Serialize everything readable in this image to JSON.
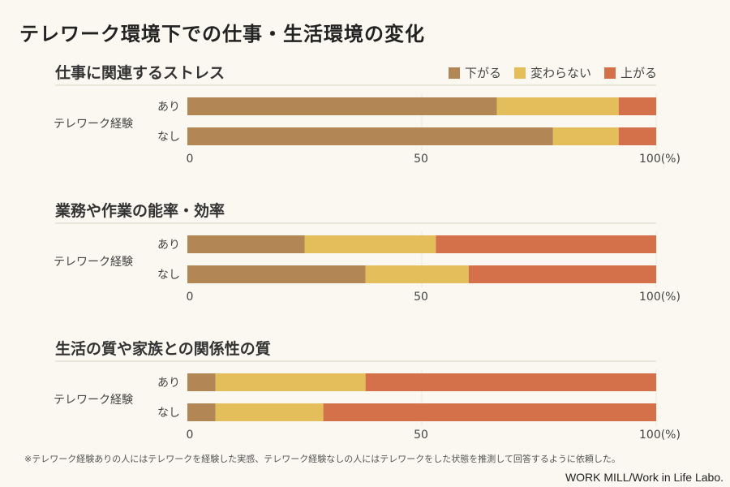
{
  "title": "テレワーク環境下での仕事・生活環境の変化",
  "legend": [
    {
      "label": "下がる",
      "color": "#b38656"
    },
    {
      "label": "変わらない",
      "color": "#e3be5b"
    },
    {
      "label": "上がる",
      "color": "#d4714a"
    }
  ],
  "chart_data": [
    {
      "type": "bar",
      "stacked": true,
      "orientation": "horizontal",
      "title": "仕事に関連するストレス",
      "group_label": "テレワーク経験",
      "categories": [
        "あり",
        "なし"
      ],
      "series": [
        {
          "name": "下がる",
          "values": [
            66,
            78
          ]
        },
        {
          "name": "変わらない",
          "values": [
            26,
            14
          ]
        },
        {
          "name": "上がる",
          "values": [
            8,
            8
          ]
        }
      ],
      "xlim": [
        0,
        100
      ],
      "xticks": [
        "0",
        "50",
        "100(%)"
      ]
    },
    {
      "type": "bar",
      "stacked": true,
      "orientation": "horizontal",
      "title": "業務や作業の能率・効率",
      "group_label": "テレワーク経験",
      "categories": [
        "あり",
        "なし"
      ],
      "series": [
        {
          "name": "下がる",
          "values": [
            25,
            38
          ]
        },
        {
          "name": "変わらない",
          "values": [
            28,
            22
          ]
        },
        {
          "name": "上がる",
          "values": [
            47,
            40
          ]
        }
      ],
      "xlim": [
        0,
        100
      ],
      "xticks": [
        "0",
        "50",
        "100(%)"
      ]
    },
    {
      "type": "bar",
      "stacked": true,
      "orientation": "horizontal",
      "title": "生活の質や家族との関係性の質",
      "group_label": "テレワーク経験",
      "categories": [
        "あり",
        "なし"
      ],
      "series": [
        {
          "name": "下がる",
          "values": [
            6,
            6
          ]
        },
        {
          "name": "変わらない",
          "values": [
            32,
            23
          ]
        },
        {
          "name": "上がる",
          "values": [
            62,
            71
          ]
        }
      ],
      "xlim": [
        0,
        100
      ],
      "xticks": [
        "0",
        "50",
        "100(%)"
      ]
    }
  ],
  "footnote": "※テレワーク経験ありの人にはテレワークを経験した実感、テレワーク経験なしの人にはテレワークをした状態を推測して回答するように依頼した。",
  "credit": "WORK MILL/Work in Life Labo."
}
